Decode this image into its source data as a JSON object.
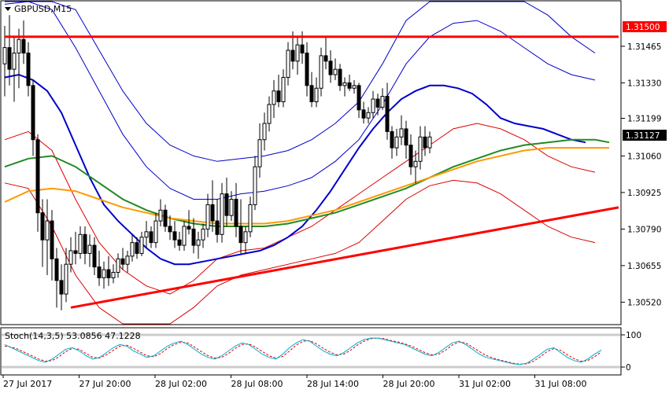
{
  "window": {
    "title": "GBPUSD,M15"
  },
  "chart_data": {
    "type": "line",
    "title": "GBPUSD,M15",
    "price_axis": {
      "ticks": [
        "1.31465",
        "1.31330",
        "1.31199",
        "1.31060",
        "1.30925",
        "1.30790",
        "1.30655",
        "1.30520"
      ],
      "ylim": [
        1.3044,
        1.3163
      ],
      "grid": false
    },
    "price_labels": {
      "resistance": {
        "text": "1.31500",
        "value": 1.315,
        "color": "#ff0000"
      },
      "current": {
        "text": "1.31127",
        "value": 1.31127,
        "color": "#000000"
      }
    },
    "time_axis": {
      "ticks": [
        "27 Jul 2017",
        "27 Jul 20:00",
        "28 Jul 02:00",
        "28 Jul 08:00",
        "28 Jul 14:00",
        "28 Jul 20:00",
        "31 Jul 02:00",
        "31 Jul 08:00"
      ],
      "bars_per_tick": 24
    },
    "candles_ohlc": [
      [
        1.314,
        1.3154,
        1.3128,
        1.3146
      ],
      [
        1.3146,
        1.3158,
        1.3132,
        1.3138
      ],
      [
        1.3138,
        1.315,
        1.3126,
        1.3144
      ],
      [
        1.3144,
        1.3153,
        1.3131,
        1.3149
      ],
      [
        1.3149,
        1.3156,
        1.314,
        1.3144
      ],
      [
        1.3144,
        1.3148,
        1.3128,
        1.3132
      ],
      [
        1.3132,
        1.3134,
        1.3106,
        1.3112
      ],
      [
        1.3112,
        1.3114,
        1.3078,
        1.3085
      ],
      [
        1.3085,
        1.309,
        1.3065,
        1.3075
      ],
      [
        1.3075,
        1.309,
        1.3062,
        1.3082
      ],
      [
        1.3082,
        1.3086,
        1.306,
        1.3068
      ],
      [
        1.3068,
        1.3072,
        1.305,
        1.306
      ],
      [
        1.306,
        1.3066,
        1.3049,
        1.3055
      ],
      [
        1.3055,
        1.3072,
        1.3052,
        1.3066
      ],
      [
        1.3066,
        1.3076,
        1.3063,
        1.3071
      ],
      [
        1.3071,
        1.3078,
        1.3066,
        1.307
      ],
      [
        1.307,
        1.308,
        1.3068,
        1.3077
      ],
      [
        1.3077,
        1.308,
        1.3066,
        1.307
      ],
      [
        1.307,
        1.3077,
        1.3065,
        1.3073
      ],
      [
        1.3073,
        1.3076,
        1.3062,
        1.3065
      ],
      [
        1.3065,
        1.3071,
        1.3058,
        1.3061
      ],
      [
        1.3061,
        1.3067,
        1.3057,
        1.3064
      ],
      [
        1.3064,
        1.3069,
        1.3058,
        1.3061
      ],
      [
        1.3061,
        1.3066,
        1.3059,
        1.3063
      ],
      [
        1.3063,
        1.307,
        1.3061,
        1.3068
      ],
      [
        1.3068,
        1.3072,
        1.3064,
        1.3066
      ],
      [
        1.3066,
        1.3071,
        1.3063,
        1.3069
      ],
      [
        1.3069,
        1.3077,
        1.3067,
        1.3074
      ],
      [
        1.3074,
        1.3076,
        1.3068,
        1.307
      ],
      [
        1.307,
        1.3078,
        1.3069,
        1.3076
      ],
      [
        1.3076,
        1.3082,
        1.3072,
        1.3078
      ],
      [
        1.3078,
        1.308,
        1.3072,
        1.3074
      ],
      [
        1.3074,
        1.3085,
        1.3072,
        1.3082
      ],
      [
        1.3082,
        1.309,
        1.308,
        1.3086
      ],
      [
        1.3086,
        1.3088,
        1.3078,
        1.308
      ],
      [
        1.308,
        1.3084,
        1.3075,
        1.3078
      ],
      [
        1.3078,
        1.3082,
        1.3072,
        1.3075
      ],
      [
        1.3075,
        1.3078,
        1.3071,
        1.3073
      ],
      [
        1.3073,
        1.3082,
        1.3071,
        1.308
      ],
      [
        1.308,
        1.3086,
        1.3077,
        1.3079
      ],
      [
        1.3079,
        1.3083,
        1.307,
        1.3073
      ],
      [
        1.3073,
        1.3078,
        1.3068,
        1.3075
      ],
      [
        1.3075,
        1.3081,
        1.3072,
        1.3079
      ],
      [
        1.3079,
        1.3092,
        1.3076,
        1.3088
      ],
      [
        1.3088,
        1.3097,
        1.3078,
        1.3082
      ],
      [
        1.3082,
        1.309,
        1.3074,
        1.3077
      ],
      [
        1.3077,
        1.3096,
        1.3074,
        1.3092
      ],
      [
        1.3092,
        1.3098,
        1.308,
        1.3084
      ],
      [
        1.3084,
        1.3093,
        1.3082,
        1.309
      ],
      [
        1.309,
        1.3096,
        1.3076,
        1.308
      ],
      [
        1.308,
        1.309,
        1.307,
        1.3074
      ],
      [
        1.3074,
        1.308,
        1.307,
        1.3078
      ],
      [
        1.3078,
        1.3091,
        1.3076,
        1.3088
      ],
      [
        1.3088,
        1.3106,
        1.3086,
        1.3102
      ],
      [
        1.3102,
        1.3118,
        1.3098,
        1.3112
      ],
      [
        1.3112,
        1.3122,
        1.3108,
        1.3118
      ],
      [
        1.3118,
        1.3128,
        1.3115,
        1.3125
      ],
      [
        1.3125,
        1.3134,
        1.312,
        1.313
      ],
      [
        1.313,
        1.3136,
        1.3124,
        1.3126
      ],
      [
        1.3126,
        1.3138,
        1.3124,
        1.3135
      ],
      [
        1.3135,
        1.3148,
        1.3132,
        1.3145
      ],
      [
        1.3145,
        1.3152,
        1.3138,
        1.3141
      ],
      [
        1.3141,
        1.315,
        1.3136,
        1.3147
      ],
      [
        1.3147,
        1.3152,
        1.314,
        1.3144
      ],
      [
        1.3144,
        1.3148,
        1.3128,
        1.3132
      ],
      [
        1.3132,
        1.3137,
        1.3124,
        1.3126
      ],
      [
        1.3126,
        1.3135,
        1.3124,
        1.3131
      ],
      [
        1.3131,
        1.3146,
        1.3128,
        1.3143
      ],
      [
        1.3143,
        1.315,
        1.3138,
        1.3141
      ],
      [
        1.3141,
        1.3145,
        1.3133,
        1.3136
      ],
      [
        1.3136,
        1.3142,
        1.3134,
        1.3138
      ],
      [
        1.3138,
        1.314,
        1.313,
        1.3132
      ],
      [
        1.3132,
        1.3135,
        1.3128,
        1.3133
      ],
      [
        1.3133,
        1.3136,
        1.313,
        1.3131
      ],
      [
        1.3131,
        1.3134,
        1.3129,
        1.3132
      ],
      [
        1.3132,
        1.3133,
        1.312,
        1.3123
      ],
      [
        1.3123,
        1.3126,
        1.3118,
        1.312
      ],
      [
        1.312,
        1.3124,
        1.3118,
        1.3122
      ],
      [
        1.3122,
        1.313,
        1.312,
        1.3127
      ],
      [
        1.3127,
        1.3129,
        1.3121,
        1.3124
      ],
      [
        1.3124,
        1.3131,
        1.3123,
        1.3128
      ],
      [
        1.3128,
        1.3133,
        1.3112,
        1.3115
      ],
      [
        1.3115,
        1.3117,
        1.3105,
        1.3109
      ],
      [
        1.3109,
        1.3116,
        1.3106,
        1.3113
      ],
      [
        1.3113,
        1.3121,
        1.311,
        1.3116
      ],
      [
        1.3116,
        1.3119,
        1.3105,
        1.311
      ],
      [
        1.311,
        1.3114,
        1.3099,
        1.3102
      ],
      [
        1.3102,
        1.3108,
        1.3096,
        1.3104
      ],
      [
        1.3104,
        1.3117,
        1.3101,
        1.3113
      ],
      [
        1.3113,
        1.3117,
        1.3106,
        1.3109
      ],
      [
        1.3109,
        1.3115,
        1.3107,
        1.3113
      ]
    ],
    "series": [
      {
        "type": "line",
        "color": "#0000cc",
        "width": 2,
        "values": [
          1.3135,
          1.3136,
          1.3134,
          1.313,
          1.3122,
          1.311,
          1.3098,
          1.3088,
          1.3082,
          1.3077,
          1.3072,
          1.3068,
          1.3066,
          1.3066,
          1.3067,
          1.3068,
          1.3069,
          1.307,
          1.3071,
          1.3073,
          1.3076,
          1.308,
          1.3086,
          1.3093,
          1.3101,
          1.3109,
          1.3116,
          1.3122,
          1.3127,
          1.313,
          1.3132,
          1.3132,
          1.3131,
          1.3129,
          1.3125,
          1.312,
          1.3118,
          1.3117,
          1.3116,
          1.3114,
          1.3112,
          1.3111
        ],
        "x": [
          0,
          3,
          6,
          9,
          12,
          15,
          18,
          21,
          24,
          27,
          30,
          33,
          36,
          39,
          42,
          45,
          48,
          51,
          54,
          57,
          60,
          63,
          66,
          69,
          72,
          75,
          78,
          81,
          84,
          87,
          90,
          93,
          96,
          99,
          102,
          105,
          108,
          111,
          114,
          117,
          120,
          123
        ]
      },
      {
        "type": "line",
        "color": "#228b22",
        "width": 2,
        "values": [
          1.3102,
          1.3105,
          1.3106,
          1.3102,
          1.3096,
          1.309,
          1.3086,
          1.3083,
          1.3081,
          1.308,
          1.308,
          1.308,
          1.3081,
          1.3083,
          1.3085,
          1.3088,
          1.3091,
          1.3094,
          1.3098,
          1.3102,
          1.3105,
          1.3108,
          1.311,
          1.3111,
          1.3112,
          1.3112,
          1.3111
        ],
        "x": [
          0,
          5,
          10,
          15,
          20,
          25,
          30,
          35,
          40,
          45,
          50,
          55,
          60,
          65,
          70,
          75,
          80,
          85,
          90,
          95,
          100,
          105,
          110,
          115,
          120,
          125,
          128
        ]
      },
      {
        "type": "line",
        "color": "#ff9900",
        "width": 2,
        "values": [
          1.3089,
          1.3093,
          1.3094,
          1.3093,
          1.309,
          1.3087,
          1.3085,
          1.3083,
          1.3082,
          1.3081,
          1.3081,
          1.3081,
          1.3082,
          1.3084,
          1.3086,
          1.3089,
          1.3092,
          1.3095,
          1.3098,
          1.3101,
          1.3104,
          1.3106,
          1.3108,
          1.3109,
          1.3109,
          1.3109,
          1.3109
        ],
        "x": [
          0,
          5,
          10,
          15,
          20,
          25,
          30,
          35,
          40,
          45,
          50,
          55,
          60,
          65,
          70,
          75,
          80,
          85,
          90,
          95,
          100,
          105,
          110,
          115,
          120,
          125,
          128
        ]
      },
      {
        "type": "line",
        "color": "#0000cc",
        "width": 1,
        "values": [
          1.3175,
          1.318,
          1.3174,
          1.316,
          1.3145,
          1.313,
          1.3118,
          1.311,
          1.3106,
          1.3104,
          1.3105,
          1.3106,
          1.3108,
          1.3112,
          1.3118,
          1.3126,
          1.314,
          1.3156,
          1.317,
          1.3178,
          1.318,
          1.3176,
          1.3168,
          1.3158,
          1.315,
          1.3144
        ],
        "x": [
          0,
          5,
          10,
          15,
          20,
          25,
          30,
          35,
          40,
          45,
          50,
          55,
          60,
          65,
          70,
          75,
          80,
          85,
          90,
          95,
          100,
          105,
          110,
          115,
          120,
          125
        ]
      },
      {
        "type": "line",
        "color": "#0000cc",
        "width": 1,
        "values": [
          1.3162,
          1.3166,
          1.316,
          1.3146,
          1.313,
          1.3114,
          1.3102,
          1.3094,
          1.309,
          1.309,
          1.3092,
          1.3093,
          1.3095,
          1.3098,
          1.3104,
          1.3112,
          1.3125,
          1.314,
          1.315,
          1.3155,
          1.3156,
          1.3152,
          1.3146,
          1.314,
          1.3136,
          1.3134
        ],
        "x": [
          0,
          5,
          10,
          15,
          20,
          25,
          30,
          35,
          40,
          45,
          50,
          55,
          60,
          65,
          70,
          75,
          80,
          85,
          90,
          95,
          100,
          105,
          110,
          115,
          120,
          125
        ]
      },
      {
        "type": "line",
        "color": "#dd0000",
        "width": 1,
        "values": [
          1.3112,
          1.3115,
          1.3108,
          1.309,
          1.3074,
          1.3064,
          1.3058,
          1.3055,
          1.306,
          1.3068,
          1.3071,
          1.3072,
          1.3076,
          1.308,
          1.3086,
          1.3092,
          1.3098,
          1.3104,
          1.311,
          1.3116,
          1.3118,
          1.3116,
          1.3112,
          1.3106,
          1.3102,
          1.31
        ],
        "x": [
          0,
          5,
          10,
          15,
          20,
          25,
          30,
          35,
          40,
          45,
          50,
          55,
          60,
          65,
          70,
          75,
          80,
          85,
          90,
          95,
          100,
          105,
          110,
          115,
          120,
          125
        ]
      },
      {
        "type": "line",
        "color": "#dd0000",
        "width": 1,
        "values": [
          1.3096,
          1.3094,
          1.308,
          1.3062,
          1.305,
          1.3044,
          1.3042,
          1.3044,
          1.305,
          1.3058,
          1.3062,
          1.3064,
          1.3066,
          1.3068,
          1.307,
          1.3074,
          1.3082,
          1.309,
          1.3095,
          1.3097,
          1.3096,
          1.3092,
          1.3086,
          1.308,
          1.3076,
          1.3074
        ],
        "x": [
          0,
          5,
          10,
          15,
          20,
          25,
          30,
          35,
          40,
          45,
          50,
          55,
          60,
          65,
          70,
          75,
          80,
          85,
          90,
          95,
          100,
          105,
          110,
          115,
          120,
          125
        ]
      }
    ],
    "trendlines": [
      {
        "color": "#ff0000",
        "width": 3,
        "from": [
          0,
          1.315
        ],
        "to": [
          130,
          1.315
        ]
      },
      {
        "color": "#ff0000",
        "width": 3,
        "from": [
          14,
          1.305
        ],
        "to": [
          130,
          1.3087
        ]
      }
    ],
    "stochastic": {
      "label": "Stoch(14,3,5) 53.0856 47.1228",
      "ticks": [
        "100",
        "0"
      ],
      "ylim": [
        0,
        100
      ],
      "main_color": "#00aacc",
      "signal_color": "#dd0000",
      "main": [
        70,
        60,
        50,
        40,
        30,
        20,
        15,
        25,
        40,
        55,
        60,
        50,
        35,
        25,
        30,
        45,
        60,
        70,
        65,
        50,
        40,
        30,
        35,
        50,
        65,
        75,
        80,
        70,
        55,
        40,
        30,
        25,
        35,
        50,
        65,
        75,
        70,
        55,
        40,
        30,
        25,
        40,
        60,
        75,
        85,
        80,
        65,
        50,
        40,
        35,
        45,
        60,
        75,
        85,
        90,
        90,
        85,
        80,
        75,
        70,
        60,
        50,
        40,
        35,
        45,
        60,
        75,
        80,
        70,
        55,
        40,
        30,
        25,
        20,
        15,
        10,
        8,
        12,
        25,
        40,
        55,
        60,
        45,
        30,
        20,
        15,
        25,
        40,
        53
      ],
      "signal": [
        65,
        62,
        55,
        45,
        35,
        25,
        18,
        20,
        32,
        48,
        58,
        55,
        42,
        30,
        28,
        38,
        52,
        65,
        68,
        58,
        46,
        35,
        32,
        42,
        58,
        70,
        77,
        75,
        62,
        48,
        35,
        28,
        30,
        42,
        58,
        70,
        72,
        62,
        48,
        35,
        28,
        33,
        50,
        68,
        80,
        82,
        72,
        58,
        46,
        38,
        40,
        52,
        68,
        80,
        88,
        90,
        88,
        82,
        78,
        72,
        65,
        55,
        45,
        38,
        40,
        52,
        68,
        78,
        75,
        62,
        48,
        36,
        28,
        22,
        17,
        12,
        9,
        10,
        18,
        32,
        48,
        57,
        52,
        38,
        26,
        18,
        20,
        32,
        47
      ]
    }
  }
}
